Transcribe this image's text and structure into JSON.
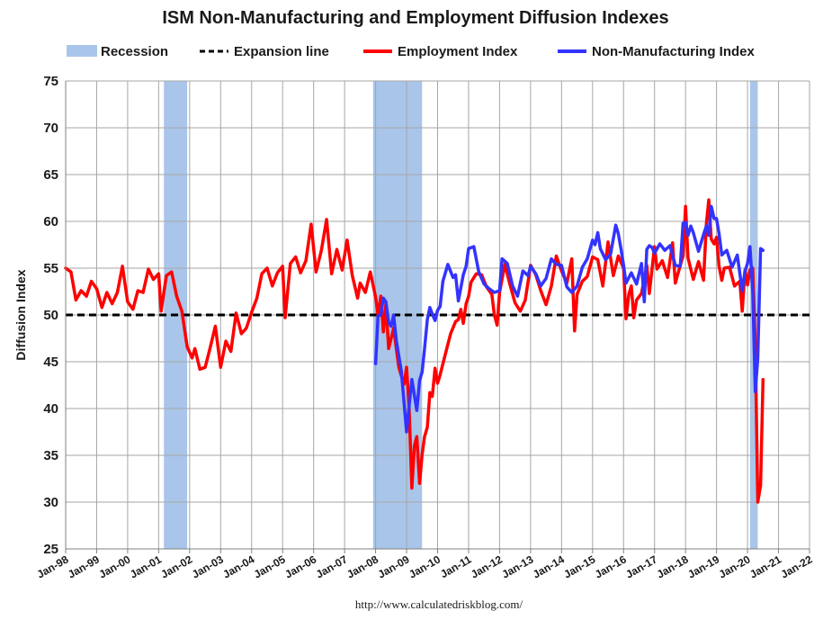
{
  "chart_data": {
    "type": "line",
    "title": "ISM Non-Manufacturing and Employment Diffusion Indexes",
    "xlabel": "",
    "ylabel": "Diffusion Index",
    "source": "http://www.calculatedriskblog.com/",
    "ylim": [
      25,
      75
    ],
    "yticks": [
      25,
      30,
      35,
      40,
      45,
      50,
      55,
      60,
      65,
      70,
      75
    ],
    "xlim": [
      1998.0,
      2022.0
    ],
    "xticks": [
      "Jan-98",
      "Jan-99",
      "Jan-00",
      "Jan-01",
      "Jan-02",
      "Jan-03",
      "Jan-04",
      "Jan-05",
      "Jan-06",
      "Jan-07",
      "Jan-08",
      "Jan-09",
      "Jan-10",
      "Jan-11",
      "Jan-12",
      "Jan-13",
      "Jan-14",
      "Jan-15",
      "Jan-16",
      "Jan-17",
      "Jan-18",
      "Jan-19",
      "Jan-20",
      "Jan-21",
      "Jan-22"
    ],
    "grid": true,
    "legend": [
      {
        "label": "Recession",
        "kind": "band",
        "color": "#a9c5ea"
      },
      {
        "label": "Expansion line",
        "kind": "dashed",
        "color": "#000000"
      },
      {
        "label": "Employment Index",
        "kind": "line",
        "color": "#ff0000"
      },
      {
        "label": "Non-Manufacturing Index",
        "kind": "line",
        "color": "#3333ff"
      }
    ],
    "legend_position": "top",
    "expansion_line": 50,
    "recessions": [
      {
        "start": 2001.17,
        "end": 2001.92
      },
      {
        "start": 2007.92,
        "end": 2009.5
      },
      {
        "start": 2020.08,
        "end": 2020.33
      }
    ],
    "series": [
      {
        "name": "Employment Index",
        "color": "#ff0000",
        "points": [
          [
            1998.0,
            55.0
          ],
          [
            1998.17,
            54.6
          ],
          [
            1998.33,
            51.6
          ],
          [
            1998.5,
            52.6
          ],
          [
            1998.67,
            52.0
          ],
          [
            1998.83,
            53.6
          ],
          [
            1999.0,
            52.8
          ],
          [
            1999.17,
            50.8
          ],
          [
            1999.33,
            52.4
          ],
          [
            1999.5,
            51.2
          ],
          [
            1999.67,
            52.4
          ],
          [
            1999.83,
            55.2
          ],
          [
            2000.0,
            51.4
          ],
          [
            2000.17,
            50.6
          ],
          [
            2000.33,
            52.6
          ],
          [
            2000.5,
            52.4
          ],
          [
            2000.67,
            54.9
          ],
          [
            2000.83,
            53.8
          ],
          [
            2001.0,
            54.4
          ],
          [
            2001.08,
            50.4
          ],
          [
            2001.25,
            54.2
          ],
          [
            2001.42,
            54.6
          ],
          [
            2001.58,
            52.0
          ],
          [
            2001.75,
            50.4
          ],
          [
            2001.92,
            46.6
          ],
          [
            2002.08,
            45.4
          ],
          [
            2002.17,
            46.4
          ],
          [
            2002.33,
            44.2
          ],
          [
            2002.5,
            44.4
          ],
          [
            2002.67,
            46.6
          ],
          [
            2002.83,
            48.8
          ],
          [
            2003.0,
            44.4
          ],
          [
            2003.17,
            47.2
          ],
          [
            2003.33,
            46.1
          ],
          [
            2003.5,
            50.2
          ],
          [
            2003.67,
            48.0
          ],
          [
            2003.83,
            48.6
          ],
          [
            2004.0,
            50.3
          ],
          [
            2004.17,
            51.8
          ],
          [
            2004.33,
            54.4
          ],
          [
            2004.5,
            55.0
          ],
          [
            2004.67,
            53.1
          ],
          [
            2004.83,
            54.5
          ],
          [
            2005.0,
            55.2
          ],
          [
            2005.08,
            49.7
          ],
          [
            2005.25,
            55.5
          ],
          [
            2005.42,
            56.2
          ],
          [
            2005.58,
            54.5
          ],
          [
            2005.75,
            55.8
          ],
          [
            2005.92,
            59.7
          ],
          [
            2006.08,
            54.6
          ],
          [
            2006.25,
            56.9
          ],
          [
            2006.42,
            60.2
          ],
          [
            2006.58,
            54.4
          ],
          [
            2006.75,
            57.0
          ],
          [
            2006.92,
            54.8
          ],
          [
            2007.08,
            58.0
          ],
          [
            2007.25,
            54.2
          ],
          [
            2007.42,
            51.8
          ],
          [
            2007.5,
            53.4
          ],
          [
            2007.67,
            52.4
          ],
          [
            2007.83,
            54.6
          ],
          [
            2008.0,
            51.9
          ],
          [
            2008.08,
            50.0
          ],
          [
            2008.17,
            52.0
          ],
          [
            2008.25,
            48.2
          ],
          [
            2008.33,
            51.2
          ],
          [
            2008.42,
            46.4
          ],
          [
            2008.58,
            48.6
          ],
          [
            2008.75,
            44.4
          ],
          [
            2008.83,
            43.5
          ],
          [
            2008.92,
            42.6
          ],
          [
            2009.0,
            44.4
          ],
          [
            2009.08,
            40.2
          ],
          [
            2009.17,
            31.5
          ],
          [
            2009.25,
            36.0
          ],
          [
            2009.33,
            37.0
          ],
          [
            2009.42,
            32.0
          ],
          [
            2009.5,
            35.1
          ],
          [
            2009.58,
            37.0
          ],
          [
            2009.67,
            38.0
          ],
          [
            2009.75,
            41.7
          ],
          [
            2009.83,
            41.3
          ],
          [
            2009.92,
            44.3
          ],
          [
            2010.0,
            42.7
          ],
          [
            2010.08,
            43.6
          ],
          [
            2010.25,
            45.8
          ],
          [
            2010.42,
            48.0
          ],
          [
            2010.58,
            49.3
          ],
          [
            2010.67,
            49.5
          ],
          [
            2010.75,
            50.6
          ],
          [
            2010.83,
            49.1
          ],
          [
            2010.92,
            51.2
          ],
          [
            2011.0,
            52.0
          ],
          [
            2011.08,
            53.5
          ],
          [
            2011.25,
            54.4
          ],
          [
            2011.42,
            54.3
          ],
          [
            2011.58,
            53.0
          ],
          [
            2011.75,
            52.2
          ],
          [
            2011.83,
            50.0
          ],
          [
            2011.92,
            48.9
          ],
          [
            2012.0,
            52.4
          ],
          [
            2012.17,
            55.4
          ],
          [
            2012.33,
            53.3
          ],
          [
            2012.5,
            51.3
          ],
          [
            2012.67,
            50.4
          ],
          [
            2012.83,
            51.6
          ],
          [
            2013.0,
            55.3
          ],
          [
            2013.17,
            54.3
          ],
          [
            2013.33,
            52.6
          ],
          [
            2013.5,
            51.1
          ],
          [
            2013.67,
            53.1
          ],
          [
            2013.83,
            56.3
          ],
          [
            2014.0,
            54.7
          ],
          [
            2014.17,
            53.4
          ],
          [
            2014.33,
            56.0
          ],
          [
            2014.42,
            48.3
          ],
          [
            2014.5,
            52.2
          ],
          [
            2014.67,
            53.6
          ],
          [
            2014.83,
            54.1
          ],
          [
            2015.0,
            56.2
          ],
          [
            2015.17,
            55.9
          ],
          [
            2015.33,
            53.1
          ],
          [
            2015.5,
            57.8
          ],
          [
            2015.67,
            54.2
          ],
          [
            2015.83,
            56.3
          ],
          [
            2016.0,
            55.0
          ],
          [
            2016.08,
            49.6
          ],
          [
            2016.17,
            52.2
          ],
          [
            2016.25,
            53.1
          ],
          [
            2016.33,
            49.7
          ],
          [
            2016.42,
            51.6
          ],
          [
            2016.58,
            52.3
          ],
          [
            2016.75,
            55.3
          ],
          [
            2016.83,
            52.3
          ],
          [
            2017.0,
            57.3
          ],
          [
            2017.08,
            54.9
          ],
          [
            2017.25,
            55.8
          ],
          [
            2017.42,
            54.0
          ],
          [
            2017.58,
            57.7
          ],
          [
            2017.67,
            53.4
          ],
          [
            2017.83,
            55.3
          ],
          [
            2017.92,
            56.3
          ],
          [
            2018.0,
            61.6
          ],
          [
            2018.08,
            56.1
          ],
          [
            2018.25,
            53.8
          ],
          [
            2018.42,
            55.7
          ],
          [
            2018.58,
            53.7
          ],
          [
            2018.67,
            59.7
          ],
          [
            2018.75,
            62.3
          ],
          [
            2018.83,
            58.1
          ],
          [
            2018.92,
            57.6
          ],
          [
            2019.0,
            58.3
          ],
          [
            2019.08,
            55.2
          ],
          [
            2019.17,
            53.7
          ],
          [
            2019.25,
            55.0
          ],
          [
            2019.42,
            55.1
          ],
          [
            2019.58,
            53.1
          ],
          [
            2019.75,
            53.6
          ],
          [
            2019.83,
            50.4
          ],
          [
            2019.92,
            54.8
          ],
          [
            2020.0,
            53.2
          ],
          [
            2020.08,
            54.8
          ],
          [
            2020.17,
            55.0
          ],
          [
            2020.25,
            47.0
          ],
          [
            2020.33,
            30.0
          ],
          [
            2020.42,
            31.8
          ],
          [
            2020.5,
            43.1
          ]
        ]
      },
      {
        "name": "Non-Manufacturing Index",
        "color": "#3333ff",
        "points": [
          [
            2008.0,
            44.8
          ],
          [
            2008.08,
            49.9
          ],
          [
            2008.17,
            50.0
          ],
          [
            2008.25,
            51.8
          ],
          [
            2008.33,
            51.4
          ],
          [
            2008.42,
            49.2
          ],
          [
            2008.5,
            48.8
          ],
          [
            2008.58,
            50.0
          ],
          [
            2008.67,
            47.2
          ],
          [
            2008.83,
            44.0
          ],
          [
            2009.0,
            37.5
          ],
          [
            2009.08,
            40.2
          ],
          [
            2009.17,
            43.1
          ],
          [
            2009.33,
            39.8
          ],
          [
            2009.42,
            43.0
          ],
          [
            2009.5,
            43.9
          ],
          [
            2009.58,
            46.4
          ],
          [
            2009.67,
            49.5
          ],
          [
            2009.75,
            50.8
          ],
          [
            2009.83,
            50.1
          ],
          [
            2009.92,
            49.4
          ],
          [
            2010.0,
            50.5
          ],
          [
            2010.08,
            50.9
          ],
          [
            2010.17,
            53.6
          ],
          [
            2010.33,
            55.4
          ],
          [
            2010.5,
            54.0
          ],
          [
            2010.58,
            54.3
          ],
          [
            2010.67,
            51.5
          ],
          [
            2010.83,
            54.3
          ],
          [
            2010.92,
            55.2
          ],
          [
            2011.0,
            57.1
          ],
          [
            2011.17,
            57.3
          ],
          [
            2011.33,
            54.6
          ],
          [
            2011.5,
            53.3
          ],
          [
            2011.67,
            52.8
          ],
          [
            2011.83,
            52.4
          ],
          [
            2012.0,
            52.6
          ],
          [
            2012.08,
            56.0
          ],
          [
            2012.25,
            55.5
          ],
          [
            2012.42,
            53.1
          ],
          [
            2012.58,
            52.0
          ],
          [
            2012.75,
            54.7
          ],
          [
            2012.92,
            54.2
          ],
          [
            2013.0,
            55.2
          ],
          [
            2013.17,
            54.4
          ],
          [
            2013.33,
            53.1
          ],
          [
            2013.5,
            53.9
          ],
          [
            2013.67,
            56.0
          ],
          [
            2013.83,
            55.4
          ],
          [
            2014.0,
            55.3
          ],
          [
            2014.17,
            53.0
          ],
          [
            2014.33,
            52.4
          ],
          [
            2014.5,
            53.1
          ],
          [
            2014.67,
            55.1
          ],
          [
            2014.83,
            56.0
          ],
          [
            2015.0,
            58.0
          ],
          [
            2015.08,
            57.5
          ],
          [
            2015.17,
            58.8
          ],
          [
            2015.25,
            57.1
          ],
          [
            2015.42,
            55.9
          ],
          [
            2015.58,
            56.5
          ],
          [
            2015.75,
            59.6
          ],
          [
            2015.83,
            58.7
          ],
          [
            2015.92,
            57.0
          ],
          [
            2016.0,
            55.3
          ],
          [
            2016.08,
            53.4
          ],
          [
            2016.25,
            54.5
          ],
          [
            2016.42,
            53.3
          ],
          [
            2016.58,
            55.5
          ],
          [
            2016.67,
            51.4
          ],
          [
            2016.75,
            57.0
          ],
          [
            2016.83,
            57.4
          ],
          [
            2016.92,
            57.2
          ],
          [
            2017.0,
            56.6
          ],
          [
            2017.17,
            57.6
          ],
          [
            2017.33,
            56.9
          ],
          [
            2017.5,
            57.4
          ],
          [
            2017.67,
            55.3
          ],
          [
            2017.83,
            55.2
          ],
          [
            2017.92,
            59.8
          ],
          [
            2018.0,
            59.9
          ],
          [
            2018.08,
            58.5
          ],
          [
            2018.17,
            59.5
          ],
          [
            2018.25,
            58.8
          ],
          [
            2018.42,
            56.8
          ],
          [
            2018.58,
            58.6
          ],
          [
            2018.67,
            59.5
          ],
          [
            2018.75,
            58.5
          ],
          [
            2018.83,
            61.6
          ],
          [
            2018.92,
            60.3
          ],
          [
            2019.0,
            60.3
          ],
          [
            2019.08,
            58.7
          ],
          [
            2019.17,
            56.4
          ],
          [
            2019.33,
            56.9
          ],
          [
            2019.5,
            55.1
          ],
          [
            2019.67,
            56.4
          ],
          [
            2019.83,
            52.6
          ],
          [
            2019.92,
            54.7
          ],
          [
            2020.0,
            55.5
          ],
          [
            2020.08,
            57.3
          ],
          [
            2020.17,
            52.5
          ],
          [
            2020.25,
            41.8
          ],
          [
            2020.33,
            45.4
          ],
          [
            2020.42,
            57.1
          ],
          [
            2020.5,
            56.9
          ]
        ]
      }
    ]
  }
}
